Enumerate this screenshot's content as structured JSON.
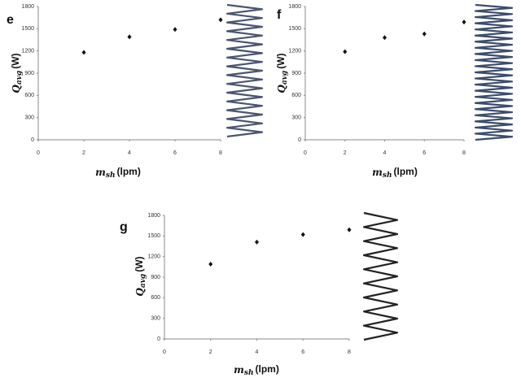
{
  "chart_data": [
    {
      "type": "scatter",
      "panel_label": "e",
      "x_label": {
        "symbol": "m",
        "subscript": "sh",
        "unit": "(lpm)"
      },
      "y_label": {
        "symbol": "Q",
        "subscript": "avg",
        "unit": "(W)"
      },
      "x": [
        2,
        4,
        6,
        8
      ],
      "values": [
        1180,
        1390,
        1490,
        1620
      ],
      "color": "#111111",
      "xlim": [
        0,
        8
      ],
      "xticks": [
        0,
        2,
        4,
        6,
        8
      ],
      "ylim": [
        0,
        1800
      ],
      "yticks": [
        0,
        300,
        600,
        900,
        1200,
        1500,
        1800
      ],
      "grid": false
    },
    {
      "type": "scatter",
      "panel_label": "f",
      "x_label": {
        "symbol": "m",
        "subscript": "sh",
        "unit": "(lpm)"
      },
      "y_label": {
        "symbol": "Q",
        "subscript": "avg",
        "unit": "(W)"
      },
      "x": [
        2,
        4,
        6,
        8
      ],
      "values": [
        1190,
        1380,
        1430,
        1590
      ],
      "color": "#111111",
      "xlim": [
        0,
        8
      ],
      "xticks": [
        0,
        2,
        4,
        6,
        8
      ],
      "ylim": [
        0,
        1800
      ],
      "yticks": [
        0,
        300,
        600,
        900,
        1200,
        1500,
        1800
      ],
      "grid": false
    },
    {
      "type": "scatter",
      "panel_label": "g",
      "x_label": {
        "symbol": "m",
        "subscript": "sh",
        "unit": "(lpm)"
      },
      "y_label": {
        "symbol": "Q",
        "subscript": "avg",
        "unit": "(W)"
      },
      "x": [
        2,
        4,
        6,
        8
      ],
      "values": [
        1090,
        1410,
        1520,
        1590
      ],
      "color": "#111111",
      "xlim": [
        0,
        8
      ],
      "xticks": [
        0,
        2,
        4,
        6,
        8
      ],
      "ylim": [
        0,
        1800
      ],
      "yticks": [
        0,
        300,
        600,
        900,
        1200,
        1500,
        1800
      ],
      "grid": false
    }
  ]
}
